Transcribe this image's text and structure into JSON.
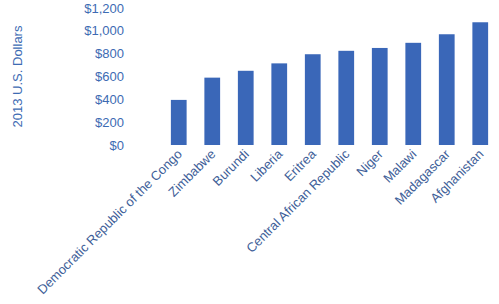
{
  "chart_data": {
    "type": "bar",
    "y_label": "2013 U.S. Dollars",
    "categories": [
      "Democratic Republic of the Congo",
      "Zimbabwe",
      "Burundi",
      "Liberia",
      "Eritrea",
      "Central African Republic",
      "Niger",
      "Malawi",
      "Madagascar",
      "Afghanistan"
    ],
    "values": [
      395,
      590,
      650,
      715,
      795,
      825,
      850,
      895,
      970,
      1075
    ],
    "color": "#3a67b8",
    "ylim": [
      0,
      1200
    ],
    "yticks": [
      {
        "value": 0,
        "label": "$0"
      },
      {
        "value": 200,
        "label": "$200"
      },
      {
        "value": 400,
        "label": "$400"
      },
      {
        "value": 600,
        "label": "$600"
      },
      {
        "value": 800,
        "label": "$800"
      },
      {
        "value": 1000,
        "label": "$1,000"
      },
      {
        "value": 1200,
        "label": "$1,200"
      }
    ],
    "grid": false
  }
}
